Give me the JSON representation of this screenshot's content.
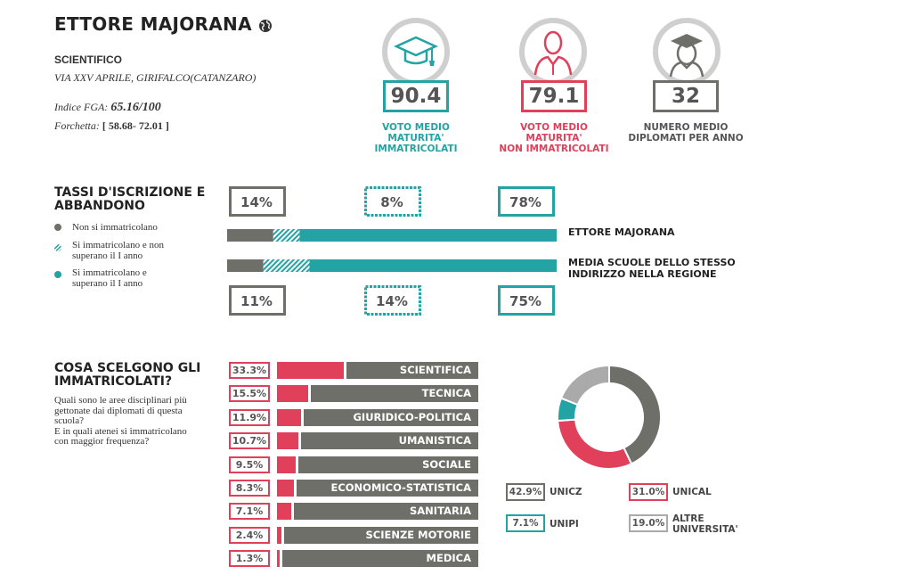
{
  "header": {
    "school_name": "ETTORE MAJORANA",
    "school_type": "SCIENTIFICO",
    "address": "VIA XXV APRILE, GIRIFALCO(CATANZARO)",
    "fga_label": "Indice FGA:",
    "fga_value": "65.16/100",
    "range_label": "Forchetta:",
    "range_value": "[ 58.68- 72.01 ]"
  },
  "kpis": [
    {
      "value": "90.4",
      "label_1": "VOTO MEDIO MATURITA'",
      "label_2": "IMMATRICOLATI",
      "color": "#23a3a3",
      "icon": "graduation-cap-icon"
    },
    {
      "value": "79.1",
      "label_1": "VOTO MEDIO MATURITA'",
      "label_2": "NON IMMATRICOLATI",
      "color": "#e0405a",
      "icon": "person-icon"
    },
    {
      "value": "32",
      "label_1": "NUMERO MEDIO",
      "label_2": "DIPLOMATI PER ANNO",
      "color": "#6f6f69",
      "icon": "graduate-icon"
    }
  ],
  "enrollment": {
    "title_1": "TASSI D'ISCRIZIONE E",
    "title_2": "ABBANDONO",
    "legend": [
      {
        "label_1": "Non si immatricolano",
        "label_2": "",
        "style": "solid-gray"
      },
      {
        "label_1": "Si immatricolano e non",
        "label_2": "superano il I anno",
        "style": "hatched-teal"
      },
      {
        "label_1": "Si immatricolano e",
        "label_2": "superano il I anno",
        "style": "solid-teal"
      }
    ]
  },
  "colors": {
    "gray": "#6f6f69",
    "teal": "#23a3a3",
    "red": "#e0405a",
    "light_gray": "#aaaaaa"
  },
  "categories_section": {
    "title_1": "COSA SCELGONO GLI",
    "title_2": "IMMATRICOLATI?",
    "desc_1": "Quali sono le aree disciplinari più",
    "desc_2": "gettonate dai diplomati di questa",
    "desc_3": "scuola?",
    "desc_4": "E in quali atenei si immatricolano",
    "desc_5": "con maggior frequenza?"
  },
  "chart_data": [
    {
      "type": "bar",
      "stacked": true,
      "orientation": "horizontal",
      "title": "TASSI D'ISCRIZIONE E ABBANDONO",
      "categories": [
        "ETTORE MAJORANA",
        "MEDIA SCUOLE DELLO STESSO INDIRIZZO NELLA REGIONE"
      ],
      "series": [
        {
          "name": "Non si immatricolano",
          "values": [
            14,
            11
          ],
          "labels": [
            "14%",
            "11%"
          ]
        },
        {
          "name": "Si immatricolano e non superano il I anno",
          "values": [
            8,
            14
          ],
          "labels": [
            "8%",
            "14%"
          ]
        },
        {
          "name": "Si immatricolano e superano il I anno",
          "values": [
            78,
            75
          ],
          "labels": [
            "78%",
            "75%"
          ]
        }
      ],
      "ylim": [
        0,
        100
      ]
    },
    {
      "type": "bar",
      "orientation": "horizontal",
      "title": "COSA SCELGONO GLI IMMATRICOLATI?",
      "categories": [
        "SCIENTIFICA",
        "TECNICA",
        "GIURIDICO-POLITICA",
        "UMANISTICA",
        "SOCIALE",
        "ECONOMICO-STATISTICA",
        "SANITARIA",
        "SCIENZE MOTORIE",
        "MEDICA"
      ],
      "values": [
        33.3,
        15.5,
        11.9,
        10.7,
        9.5,
        8.3,
        7.1,
        2.4,
        1.3
      ],
      "labels": [
        "33.3%",
        "15.5%",
        "11.9%",
        "10.7%",
        "9.5%",
        "8.3%",
        "7.1%",
        "2.4%",
        "1.3%"
      ],
      "ylim": [
        0,
        100
      ]
    },
    {
      "type": "pie",
      "donut": true,
      "categories": [
        "UNICZ",
        "UNICAL",
        "UNIPI",
        "ALTRE UNIVERSITA'"
      ],
      "values": [
        42.9,
        31.0,
        7.1,
        19.0
      ],
      "labels": [
        "42.9%",
        "31.0%",
        "7.1%",
        "19.0%"
      ],
      "colors": [
        "#6f6f69",
        "#e0405a",
        "#23a3a3",
        "#aaaaaa"
      ]
    }
  ]
}
